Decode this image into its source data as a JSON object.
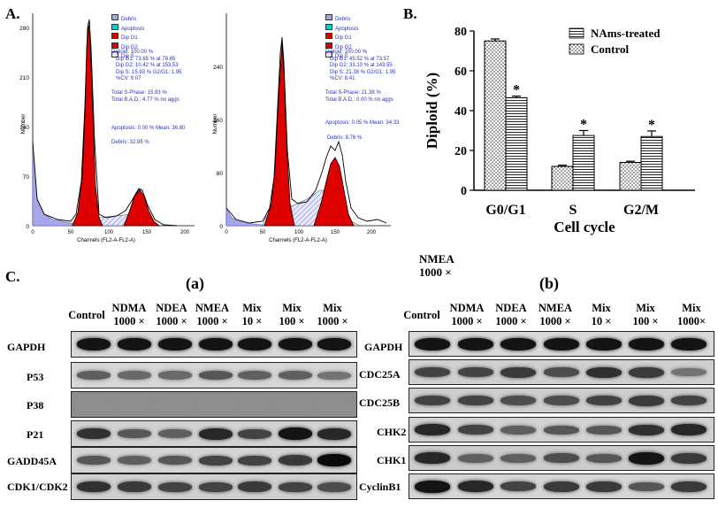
{
  "panels": {
    "A": "A.",
    "B": "B.",
    "C": "C."
  },
  "flow1": {
    "legend": [
      "Debris",
      "Apoptosis",
      "Dip G1",
      "Dip G2",
      "Dip S"
    ],
    "stats": [
      "Diploid: 100.00 %",
      "Dip G1: 73.65 % at 78.65",
      "Dip G2: 10.42 % at 153.53",
      "Dip S: 15.93 %   G2/G1: 1.95",
      "%CV: 9.07"
    ],
    "extra": [
      "Total S-Phase: 15.93 %",
      "Total B.A.D.: 4.77 %   no aggs"
    ],
    "apoptosis": "Apoptosis: 0.00 %   Mean: 36.80",
    "debris": "Debris: 32.95 %",
    "xlabel": "Channels (FL2-A-FL2-A)",
    "ylabel": "Number",
    "xticks": [
      "0",
      "50",
      "100",
      "150",
      "200"
    ],
    "yticks": [
      "0",
      "70",
      "140",
      "210",
      "280"
    ]
  },
  "flow2": {
    "legend": [
      "Debris",
      "Apoptosis",
      "Dip G1",
      "Dip G2",
      "Dip S"
    ],
    "stats": [
      "Diploid: 100.00 %",
      "Dip G1: 45.52 % at 73.57",
      "Dip G2: 33.10 % at 143.55",
      "Dip S: 21.38 %   G2/G1: 1.95",
      "%CV: 8.41"
    ],
    "extra": [
      "Total S-Phase: 21.38 %",
      "Total B.A.D.: 0.00 %   no aggs"
    ],
    "apoptosis": "Apoptosis: 0.05 %   Mean: 34.33",
    "debris": "Debris: 8.76 %",
    "xlabel": "Channels (FL2-A-FL2-A)",
    "ylabel": "Number",
    "xticks": [
      "0",
      "50",
      "100",
      "150",
      "200"
    ],
    "yticks": [
      "0",
      "80",
      "160",
      "240"
    ]
  },
  "chart_data": {
    "type": "bar",
    "ylabel": "Diploid (%)",
    "xlabel": "Cell cycle",
    "categories": [
      "G0/G1",
      "S",
      "G2/M"
    ],
    "ylim": [
      0,
      80
    ],
    "yticks": [
      0,
      20,
      40,
      60,
      80
    ],
    "series": [
      {
        "name": "Control",
        "values": [
          75,
          12,
          14
        ],
        "errors": [
          1,
          0.6,
          0.6
        ],
        "significant": [
          false,
          false,
          false
        ]
      },
      {
        "name": "NAms-treated",
        "values": [
          46.5,
          27.5,
          27
        ],
        "errors": [
          0.8,
          2.5,
          2.8
        ],
        "significant": [
          true,
          true,
          true
        ]
      }
    ],
    "legend_order": [
      "NAms-treated",
      "Control"
    ],
    "significance_marker": "*",
    "legend_position": "top-right"
  },
  "blot_a": {
    "title": "(a)",
    "columns": [
      [
        "Control",
        ""
      ],
      [
        "NDMA",
        "1000 ×"
      ],
      [
        "NDEA",
        "1000 ×"
      ],
      [
        "NMEA",
        "1000 ×"
      ],
      [
        "Mix",
        "10 ×"
      ],
      [
        "Mix",
        "100 ×"
      ],
      [
        "Mix",
        "1000 ×"
      ]
    ],
    "proteins": [
      "GAPDH",
      "P53",
      "P38",
      "P21",
      "GADD45A",
      "CDK1/CDK2"
    ],
    "intensity": [
      [
        0.95,
        0.95,
        0.95,
        0.95,
        0.95,
        0.95,
        0.95
      ],
      [
        0.55,
        0.5,
        0.5,
        0.6,
        0.55,
        0.55,
        0.45
      ],
      [
        0.3,
        0.3,
        0.3,
        0.3,
        0.3,
        0.3,
        0.3
      ],
      [
        0.8,
        0.6,
        0.55,
        0.85,
        0.7,
        0.95,
        0.85
      ],
      [
        0.6,
        0.55,
        0.6,
        0.7,
        0.7,
        0.75,
        1.0
      ],
      [
        0.8,
        0.75,
        0.7,
        0.7,
        0.75,
        0.7,
        0.65
      ]
    ]
  },
  "blot_b": {
    "title": "(b)",
    "note": [
      "NMEA",
      "1000 ×"
    ],
    "columns": [
      [
        "Control",
        ""
      ],
      [
        "NDMA",
        "1000 ×"
      ],
      [
        "NDEA",
        "1000 ×"
      ],
      [
        "NMEA",
        "1000 ×"
      ],
      [
        "Mix",
        "10 ×"
      ],
      [
        "Mix",
        "100 ×"
      ],
      [
        "Mix",
        "1000×"
      ]
    ],
    "proteins": [
      "GAPDH",
      "CDC25A",
      "CDC25B",
      "CHK2",
      "CHK1",
      "CyclinB1"
    ],
    "intensity": [
      [
        0.95,
        0.95,
        0.95,
        0.95,
        0.95,
        0.95,
        0.95
      ],
      [
        0.7,
        0.7,
        0.75,
        0.65,
        0.8,
        0.75,
        0.45
      ],
      [
        0.7,
        0.7,
        0.65,
        0.65,
        0.7,
        0.75,
        0.7
      ],
      [
        0.85,
        0.7,
        0.55,
        0.6,
        0.6,
        0.8,
        0.85
      ],
      [
        0.85,
        0.55,
        0.55,
        0.65,
        0.6,
        0.95,
        0.75
      ],
      [
        0.95,
        0.85,
        0.7,
        0.75,
        0.75,
        0.6,
        0.75
      ]
    ]
  }
}
